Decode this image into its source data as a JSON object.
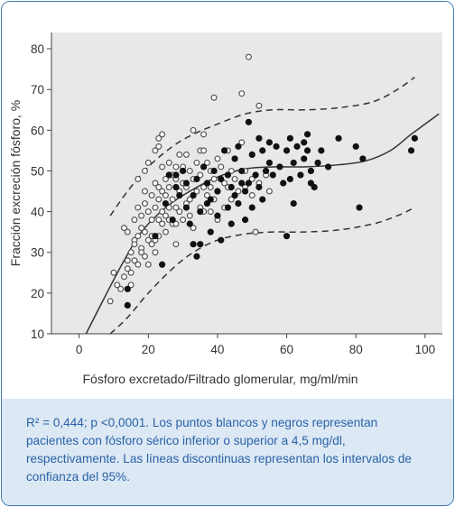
{
  "chart_data": {
    "type": "scatter",
    "xlabel": "Fósforo excretado/Filtrado glomerular, mg/ml/min",
    "ylabel": "Fracción excreción fósforo, %",
    "xlim": [
      -8,
      105
    ],
    "ylim": [
      10,
      84
    ],
    "x_ticks": [
      0,
      20,
      40,
      60,
      80,
      100
    ],
    "y_ticks": [
      10,
      20,
      30,
      40,
      50,
      60,
      70,
      80
    ],
    "grid": false,
    "plot_background": "#e8e8e8",
    "series": [
      {
        "marker": "open-circle",
        "color": "#555555",
        "points": [
          [
            9,
            18
          ],
          [
            10,
            25
          ],
          [
            11,
            22
          ],
          [
            12,
            21
          ],
          [
            13,
            24
          ],
          [
            13,
            36
          ],
          [
            14,
            35
          ],
          [
            14,
            28
          ],
          [
            14,
            26
          ],
          [
            15,
            30
          ],
          [
            15,
            25
          ],
          [
            15,
            22
          ],
          [
            16,
            33
          ],
          [
            16,
            38
          ],
          [
            16,
            32
          ],
          [
            16,
            28
          ],
          [
            17,
            41
          ],
          [
            17,
            48
          ],
          [
            17,
            34
          ],
          [
            17,
            27
          ],
          [
            18,
            39
          ],
          [
            18,
            36
          ],
          [
            18,
            31
          ],
          [
            18,
            30
          ],
          [
            19,
            50
          ],
          [
            19,
            45
          ],
          [
            19,
            42
          ],
          [
            19,
            35
          ],
          [
            19,
            29
          ],
          [
            20,
            52
          ],
          [
            20,
            40
          ],
          [
            20,
            33
          ],
          [
            20,
            27
          ],
          [
            21,
            44
          ],
          [
            21,
            38
          ],
          [
            21,
            34
          ],
          [
            21,
            32
          ],
          [
            22,
            55
          ],
          [
            22,
            47
          ],
          [
            22,
            41
          ],
          [
            22,
            33
          ],
          [
            22,
            30
          ],
          [
            23,
            58
          ],
          [
            23,
            56
          ],
          [
            23,
            46
          ],
          [
            23,
            43
          ],
          [
            23,
            38
          ],
          [
            23,
            34
          ],
          [
            24,
            59
          ],
          [
            24,
            51
          ],
          [
            24,
            45
          ],
          [
            24,
            40
          ],
          [
            24,
            37
          ],
          [
            25,
            48
          ],
          [
            25,
            44
          ],
          [
            25,
            39
          ],
          [
            25,
            35
          ],
          [
            26,
            52
          ],
          [
            26,
            46
          ],
          [
            26,
            41
          ],
          [
            26,
            38
          ],
          [
            27,
            49
          ],
          [
            27,
            43
          ],
          [
            27,
            37
          ],
          [
            28,
            51
          ],
          [
            28,
            48
          ],
          [
            28,
            41
          ],
          [
            28,
            37
          ],
          [
            28,
            32
          ],
          [
            29,
            54
          ],
          [
            29,
            45
          ],
          [
            29,
            40
          ],
          [
            30,
            51
          ],
          [
            30,
            47
          ],
          [
            30,
            38
          ],
          [
            31,
            54
          ],
          [
            31,
            46
          ],
          [
            31,
            42
          ],
          [
            32,
            50
          ],
          [
            32,
            43
          ],
          [
            32,
            39
          ],
          [
            33,
            60
          ],
          [
            33,
            48
          ],
          [
            33,
            44
          ],
          [
            33,
            36
          ],
          [
            34,
            52
          ],
          [
            34,
            45
          ],
          [
            35,
            55
          ],
          [
            35,
            49
          ],
          [
            35,
            41
          ],
          [
            36,
            59
          ],
          [
            36,
            55
          ],
          [
            36,
            46
          ],
          [
            36,
            40
          ],
          [
            37,
            52
          ],
          [
            37,
            44
          ],
          [
            38,
            50
          ],
          [
            38,
            46
          ],
          [
            38,
            40
          ],
          [
            39,
            68
          ],
          [
            39,
            48
          ],
          [
            39,
            43
          ],
          [
            40,
            53
          ],
          [
            40,
            45
          ],
          [
            40,
            38
          ],
          [
            41,
            51
          ],
          [
            42,
            47
          ],
          [
            42,
            41
          ],
          [
            43,
            55
          ],
          [
            43,
            46
          ],
          [
            44,
            50
          ],
          [
            44,
            43
          ],
          [
            45,
            53
          ],
          [
            45,
            48
          ],
          [
            46,
            45
          ],
          [
            47,
            57
          ],
          [
            47,
            69
          ],
          [
            48,
            50
          ],
          [
            48,
            46
          ],
          [
            49,
            78
          ],
          [
            50,
            48
          ],
          [
            50,
            44
          ],
          [
            51,
            35
          ],
          [
            52,
            66
          ],
          [
            52,
            47
          ],
          [
            54,
            49
          ],
          [
            55,
            45
          ]
        ]
      },
      {
        "marker": "filled-circle",
        "color": "#111111",
        "points": [
          [
            14,
            17
          ],
          [
            14,
            21
          ],
          [
            22,
            34
          ],
          [
            24,
            27
          ],
          [
            25,
            42
          ],
          [
            26,
            49
          ],
          [
            27,
            38
          ],
          [
            28,
            46
          ],
          [
            28,
            49
          ],
          [
            29,
            44
          ],
          [
            30,
            50
          ],
          [
            31,
            47
          ],
          [
            31,
            41
          ],
          [
            32,
            37
          ],
          [
            33,
            32
          ],
          [
            33,
            44
          ],
          [
            34,
            29
          ],
          [
            34,
            48
          ],
          [
            35,
            40
          ],
          [
            35,
            32
          ],
          [
            36,
            51
          ],
          [
            37,
            42
          ],
          [
            37,
            47
          ],
          [
            38,
            35
          ],
          [
            38,
            43
          ],
          [
            39,
            50
          ],
          [
            40,
            45
          ],
          [
            40,
            39
          ],
          [
            41,
            33
          ],
          [
            41,
            48
          ],
          [
            42,
            55
          ],
          [
            43,
            41
          ],
          [
            43,
            49
          ],
          [
            44,
            37
          ],
          [
            44,
            46
          ],
          [
            45,
            53
          ],
          [
            45,
            44
          ],
          [
            46,
            56
          ],
          [
            46,
            42
          ],
          [
            47,
            50
          ],
          [
            47,
            47
          ],
          [
            48,
            38
          ],
          [
            48,
            45
          ],
          [
            49,
            62
          ],
          [
            49,
            47
          ],
          [
            50,
            54
          ],
          [
            50,
            41
          ],
          [
            51,
            49
          ],
          [
            52,
            58
          ],
          [
            52,
            46
          ],
          [
            53,
            55
          ],
          [
            53,
            43
          ],
          [
            54,
            50
          ],
          [
            55,
            57
          ],
          [
            55,
            52
          ],
          [
            56,
            49
          ],
          [
            57,
            56
          ],
          [
            58,
            51
          ],
          [
            59,
            47
          ],
          [
            60,
            55
          ],
          [
            60,
            34
          ],
          [
            61,
            58
          ],
          [
            61,
            48
          ],
          [
            62,
            52
          ],
          [
            62,
            42
          ],
          [
            63,
            56
          ],
          [
            64,
            49
          ],
          [
            65,
            57
          ],
          [
            65,
            53
          ],
          [
            66,
            55
          ],
          [
            66,
            59
          ],
          [
            67,
            50
          ],
          [
            67,
            47
          ],
          [
            68,
            46
          ],
          [
            69,
            52
          ],
          [
            70,
            55
          ],
          [
            72,
            51
          ],
          [
            75,
            58
          ],
          [
            80,
            56
          ],
          [
            81,
            41
          ],
          [
            82,
            53
          ],
          [
            96,
            55
          ],
          [
            97,
            58
          ]
        ]
      }
    ],
    "fit_line": {
      "style": "solid",
      "points": [
        [
          2,
          10
        ],
        [
          8,
          20
        ],
        [
          13,
          28
        ],
        [
          18,
          35
        ],
        [
          25,
          41
        ],
        [
          32,
          45
        ],
        [
          40,
          48.5
        ],
        [
          48,
          50.5
        ],
        [
          56,
          51
        ],
        [
          65,
          51
        ],
        [
          75,
          51.5
        ],
        [
          83,
          52.5
        ],
        [
          90,
          55
        ],
        [
          96,
          59
        ],
        [
          104,
          64
        ]
      ]
    },
    "ci_upper": {
      "style": "dashed",
      "points": [
        [
          9,
          39
        ],
        [
          14,
          45
        ],
        [
          20,
          51
        ],
        [
          27,
          56
        ],
        [
          33,
          59
        ],
        [
          40,
          61.5
        ],
        [
          48,
          64
        ],
        [
          56,
          65
        ],
        [
          65,
          65
        ],
        [
          75,
          65.5
        ],
        [
          85,
          67
        ],
        [
          92,
          70
        ],
        [
          97,
          73
        ]
      ]
    },
    "ci_lower": {
      "style": "dashed",
      "points": [
        [
          9,
          10
        ],
        [
          14,
          14
        ],
        [
          20,
          20
        ],
        [
          27,
          26
        ],
        [
          33,
          30
        ],
        [
          40,
          33
        ],
        [
          48,
          34.5
        ],
        [
          56,
          35
        ],
        [
          65,
          35
        ],
        [
          75,
          35.5
        ],
        [
          85,
          37
        ],
        [
          92,
          39
        ],
        [
          97,
          41
        ]
      ]
    }
  },
  "caption": {
    "text": "R² = 0,444; p <0,0001. Los puntos blancos y negros representan pacientes con fósforo sérico inferior o superior a 4,5 mg/dl, respectivamente. Las líneas discontinuas representan los intervalos de confianza del 95%."
  }
}
